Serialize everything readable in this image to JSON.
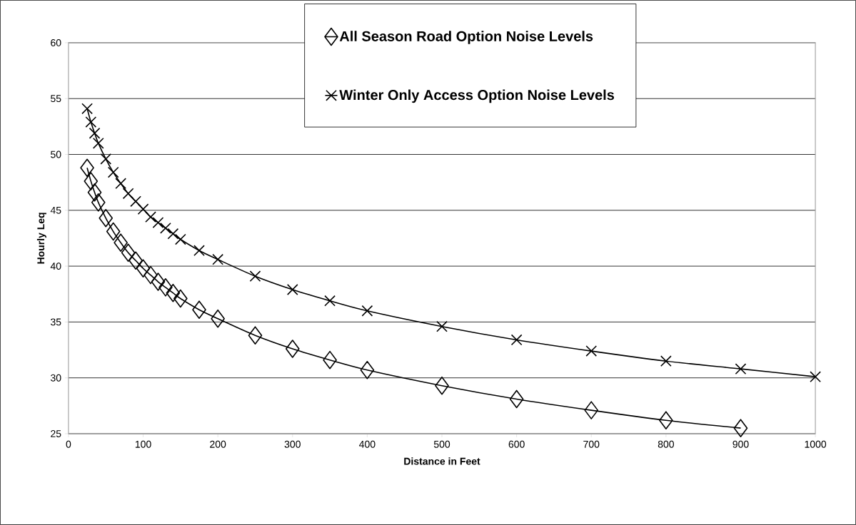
{
  "chart_data": {
    "type": "line",
    "xlabel": "Distance in Feet",
    "ylabel": "Hourly Leq",
    "xlim": [
      0,
      1000
    ],
    "ylim": [
      25,
      60
    ],
    "xticks": [
      0,
      100,
      200,
      300,
      400,
      500,
      600,
      700,
      800,
      900,
      1000
    ],
    "yticks": [
      25,
      30,
      35,
      40,
      45,
      50,
      55,
      60
    ],
    "grid": "y",
    "legend": "top",
    "series": [
      {
        "name": "All Season Road Option Noise Levels",
        "color": "#000000",
        "marker": "diamond",
        "x": [
          25,
          30,
          35,
          40,
          50,
          60,
          70,
          80,
          90,
          100,
          110,
          120,
          130,
          140,
          150,
          175,
          200,
          250,
          300,
          350,
          400,
          500,
          600,
          700,
          800,
          900
        ],
        "values": [
          48.8,
          47.6,
          46.6,
          45.7,
          44.3,
          43.1,
          42.1,
          41.2,
          40.5,
          39.8,
          39.2,
          38.6,
          38.1,
          37.6,
          37.1,
          36.1,
          35.3,
          33.8,
          32.6,
          31.6,
          30.7,
          29.3,
          28.1,
          27.1,
          26.2,
          25.5
        ]
      },
      {
        "name": "Winter Only Access Option Noise Levels",
        "color": "#000000",
        "marker": "cross",
        "x": [
          25,
          30,
          35,
          40,
          50,
          60,
          70,
          80,
          90,
          100,
          110,
          120,
          130,
          140,
          150,
          175,
          200,
          250,
          300,
          350,
          400,
          500,
          600,
          700,
          800,
          900,
          1000
        ],
        "values": [
          54.1,
          52.9,
          51.9,
          51.0,
          49.6,
          48.4,
          47.4,
          46.5,
          45.8,
          45.1,
          44.4,
          43.9,
          43.4,
          42.9,
          42.4,
          41.4,
          40.6,
          39.1,
          37.9,
          36.9,
          36.0,
          34.6,
          33.4,
          32.4,
          31.5,
          30.8,
          30.1
        ]
      }
    ]
  }
}
